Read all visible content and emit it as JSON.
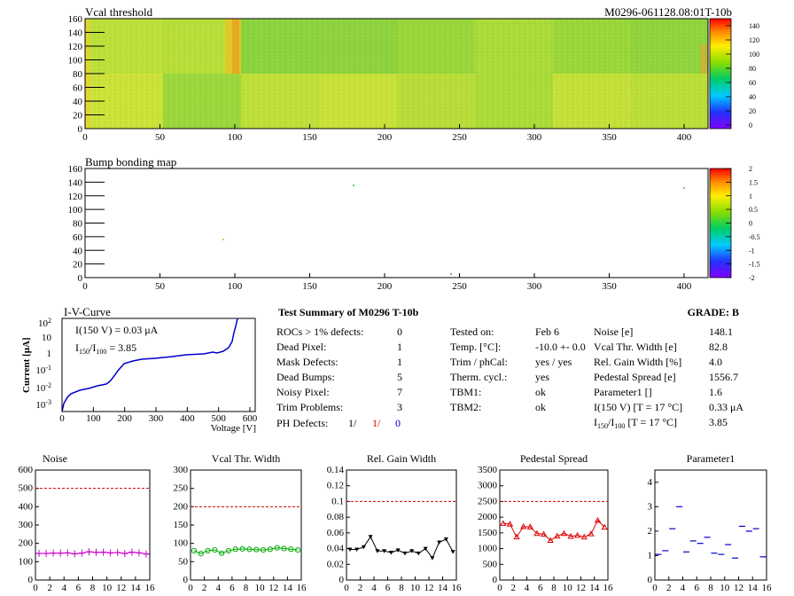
{
  "header": {
    "map1_title": "Vcal threshold",
    "module_id": "M0296-061128.08:01T-10b",
    "map2_title": "Bump bonding map"
  },
  "maps": {
    "xticks": [
      "0",
      "50",
      "100",
      "150",
      "200",
      "250",
      "300",
      "350",
      "400"
    ],
    "yticks": [
      "0",
      "20",
      "40",
      "60",
      "80",
      "100",
      "120",
      "140",
      "160"
    ],
    "xlim": [
      0,
      416
    ],
    "ylim": [
      0,
      160
    ],
    "map1_z": [
      "0",
      "20",
      "40",
      "60",
      "80",
      "100",
      "120",
      "140"
    ],
    "map2_z": [
      "-2",
      "-1.5",
      "-1",
      "-0.5",
      "0",
      "0.5",
      "1",
      "1.5",
      "2"
    ]
  },
  "iv": {
    "title": "I-V-Curve",
    "xlabel": "Voltage [V]",
    "ylabel": "Current [μA]",
    "xticks": [
      "0",
      "100",
      "200",
      "300",
      "400",
      "500",
      "600"
    ],
    "ann1": "I(150 V) = 0.03 μA",
    "ann2_a": "I",
    "ann2_sub1": "150",
    "ann2_b": "/I",
    "ann2_sub2": "100",
    "ann2_c": " =  3.85"
  },
  "summary": {
    "title": "Test Summary of M0296    T-10b",
    "grade": "GRADE:  B",
    "rows": [
      {
        "label": "ROCs > 1% defects:",
        "value": "0"
      },
      {
        "label": "Dead Pixel:",
        "value": "1"
      },
      {
        "label": "Mask Defects:",
        "value": "1"
      },
      {
        "label": "Dead Bumps:",
        "value": "5"
      },
      {
        "label": "Noisy Pixel:",
        "value": "7"
      },
      {
        "label": "Trim Problems:",
        "value": "3"
      }
    ],
    "ph_label": "PH Defects:",
    "ph_v1": "1/",
    "ph_v2": "1/",
    "ph_v3": "0",
    "mid": [
      {
        "label": "Tested on:",
        "value": "Feb 6"
      },
      {
        "label": "Temp. [°C]:",
        "value": "-10.0 +- 0.0"
      },
      {
        "label": "Trim / phCal:",
        "value": "yes / yes"
      },
      {
        "label": "Therm. cycl.:",
        "value": "yes"
      },
      {
        "label": "TBM1:",
        "value": "ok"
      },
      {
        "label": "TBM2:",
        "value": "ok"
      }
    ],
    "right": [
      {
        "label": "Noise [e]",
        "value": "148.1"
      },
      {
        "label": "Vcal Thr. Width [e]",
        "value": "82.8"
      },
      {
        "label": "Rel. Gain Width [%]",
        "value": "4.0"
      },
      {
        "label": "Pedestal Spread [e]",
        "value": "1556.7"
      },
      {
        "label": "Parameter1 []",
        "value": "1.6"
      },
      {
        "label": "I(150 V) [T = 17 °C]",
        "value": "0.33 μA"
      }
    ],
    "ratio_a": "I",
    "ratio_sub1": "150",
    "ratio_b": "/I",
    "ratio_sub2": "100",
    "ratio_c": "  [T = 17 °C]",
    "ratio_value": "3.85"
  },
  "chart_data": [
    {
      "type": "scatter",
      "title": "Noise",
      "x": [
        0,
        1,
        2,
        3,
        4,
        5,
        6,
        7,
        8,
        9,
        10,
        11,
        12,
        13,
        14,
        15
      ],
      "values": [
        145,
        145,
        147,
        147,
        148,
        143,
        147,
        154,
        151,
        152,
        148,
        150,
        145,
        152,
        148,
        142
      ],
      "ylim": [
        0,
        600
      ],
      "yticks": [
        0,
        100,
        200,
        300,
        400,
        500,
        600
      ],
      "limit": 500,
      "color": "#cc00cc",
      "xticks": [
        "0",
        "2",
        "4",
        "6",
        "8",
        "10",
        "12",
        "14",
        "16"
      ]
    },
    {
      "type": "line",
      "title": "Vcal Thr. Width",
      "x": [
        0,
        1,
        2,
        3,
        4,
        5,
        6,
        7,
        8,
        9,
        10,
        11,
        12,
        13,
        14,
        15
      ],
      "values": [
        80,
        72,
        80,
        82,
        73,
        80,
        84,
        85,
        84,
        83,
        82,
        84,
        88,
        86,
        84,
        82
      ],
      "ylim": [
        0,
        300
      ],
      "yticks": [
        0,
        50,
        100,
        150,
        200,
        250,
        300
      ],
      "limit": 200,
      "color": "#00aa00",
      "xticks": [
        "0",
        "2",
        "4",
        "6",
        "8",
        "10",
        "12",
        "14",
        "16"
      ]
    },
    {
      "type": "line",
      "title": "Rel. Gain Width",
      "x": [
        0,
        1,
        2,
        3,
        4,
        5,
        6,
        7,
        8,
        9,
        10,
        11,
        12,
        13,
        14,
        15
      ],
      "values": [
        0.039,
        0.039,
        0.042,
        0.055,
        0.037,
        0.037,
        0.035,
        0.038,
        0.034,
        0.037,
        0.034,
        0.04,
        0.028,
        0.048,
        0.052,
        0.036
      ],
      "ylim": [
        0,
        0.14
      ],
      "yticks": [
        0,
        0.02,
        0.04,
        0.06,
        0.08,
        0.1,
        0.12,
        0.14
      ],
      "limit": 0.1,
      "color": "#000000",
      "xticks": [
        "0",
        "2",
        "4",
        "6",
        "8",
        "10",
        "12",
        "14",
        "16"
      ]
    },
    {
      "type": "line",
      "title": "Pedestal Spread",
      "x": [
        0,
        1,
        2,
        3,
        4,
        5,
        6,
        7,
        8,
        9,
        10,
        11,
        12,
        13,
        14,
        15
      ],
      "values": [
        1800,
        1780,
        1370,
        1700,
        1690,
        1480,
        1460,
        1260,
        1400,
        1480,
        1390,
        1420,
        1370,
        1470,
        1900,
        1680
      ],
      "ylim": [
        0,
        3500
      ],
      "yticks": [
        0,
        500,
        1000,
        1500,
        2000,
        2500,
        3000,
        3500
      ],
      "limit": 2500,
      "color": "#dd0000",
      "xticks": [
        "0",
        "2",
        "4",
        "6",
        "8",
        "10",
        "12",
        "14",
        "16"
      ]
    },
    {
      "type": "scatter",
      "title": "Parameter1",
      "x": [
        0,
        1,
        2,
        3,
        4,
        5,
        6,
        7,
        8,
        9,
        10,
        11,
        12,
        13,
        14,
        15
      ],
      "values": [
        1.05,
        1.2,
        2.1,
        3.0,
        1.15,
        1.6,
        1.5,
        1.75,
        1.1,
        1.05,
        1.45,
        0.9,
        2.2,
        2.0,
        2.1,
        0.95
      ],
      "ylim": [
        0,
        4.5
      ],
      "yticks": [
        0,
        1,
        2,
        3,
        4
      ],
      "limit": null,
      "color": "#0000cc",
      "xticks": [
        "0",
        "2",
        "4",
        "6",
        "8",
        "10",
        "12",
        "14",
        "16"
      ]
    }
  ]
}
